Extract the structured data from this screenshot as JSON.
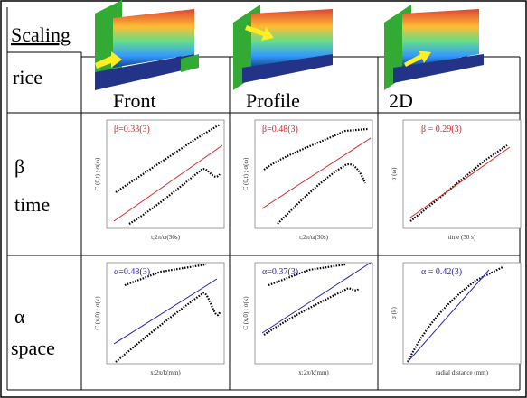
{
  "header": {
    "title": "Scaling",
    "row_label": "rice",
    "columns": [
      "Front",
      "Profile",
      "2D"
    ]
  },
  "rows": [
    {
      "symbol": "β",
      "label": "time",
      "plots": [
        {
          "annotation": "β=0.33(3)",
          "x_label": "t;2π/ω(30s)",
          "y_label": "C (0,t) ; σ(ω)"
        },
        {
          "annotation": "β=0.48(3)",
          "x_label": "t;2π/ω(30s)",
          "y_label": "C (0,t) ; σ(ω)"
        },
        {
          "annotation": "β = 0.29(3)",
          "x_label": "time (30 s)",
          "y_label": "σ (ω)"
        }
      ]
    },
    {
      "symbol": "α",
      "label": "space",
      "plots": [
        {
          "annotation": "α=0.48(3)",
          "x_label": "x;2π/k(mm)",
          "y_label": "C (x,0) ; σ(k)"
        },
        {
          "annotation": "α=0.37(3)",
          "x_label": "x;2π/k(mm)",
          "y_label": "C (x,0) ; σ(k)"
        },
        {
          "annotation": "α = 0.42(3)",
          "x_label": "radial distance (mm)",
          "y_label": "σ (k)"
        }
      ]
    }
  ]
}
